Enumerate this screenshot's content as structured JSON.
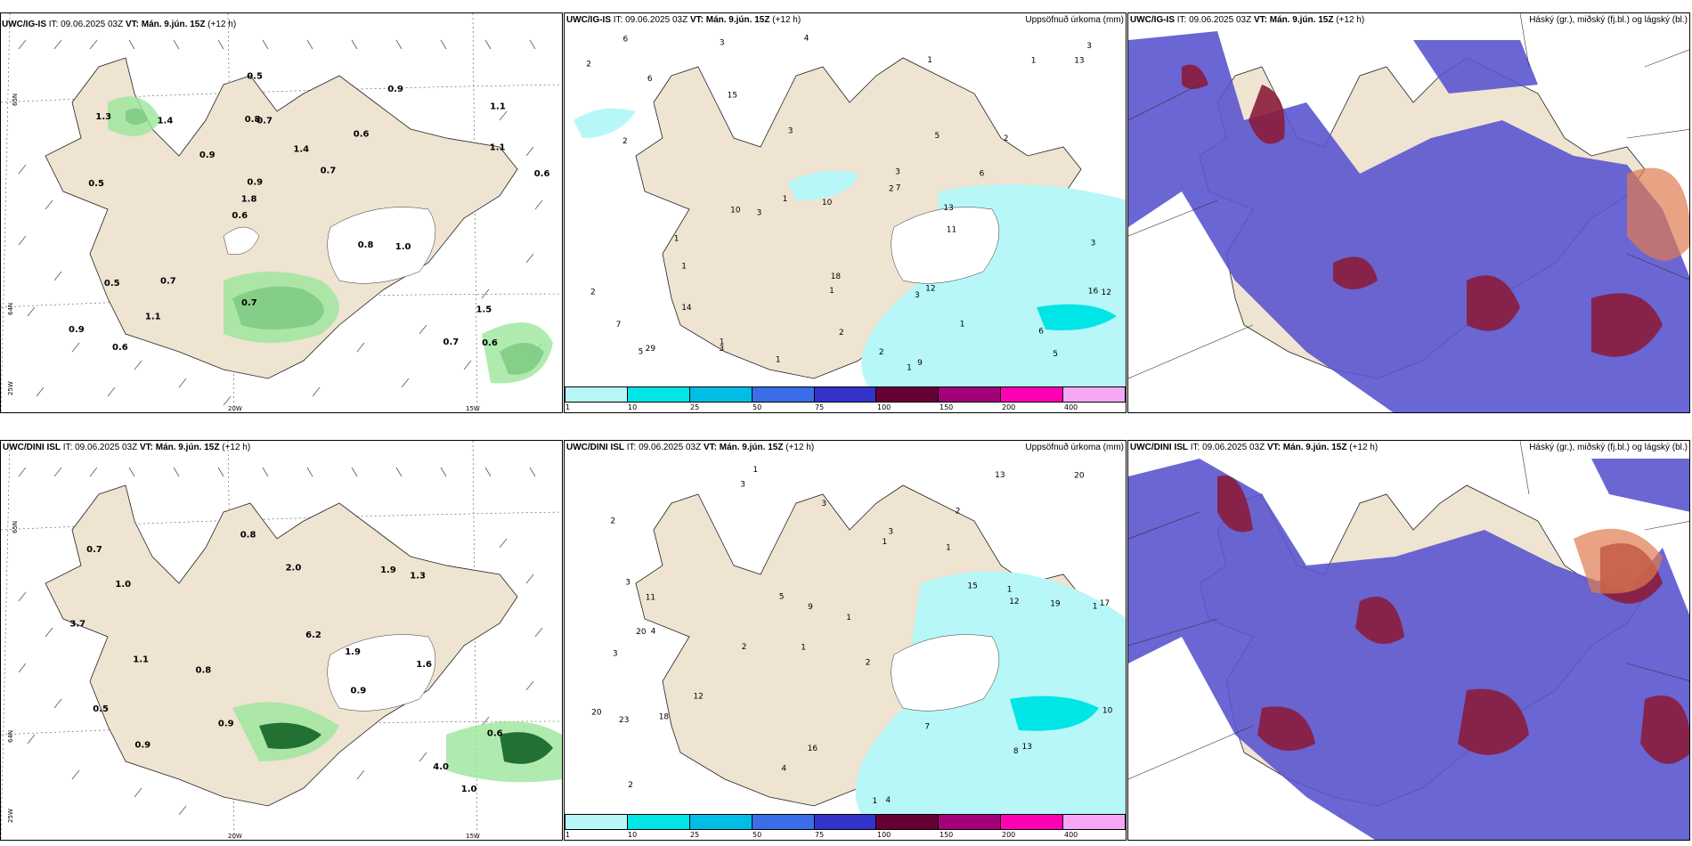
{
  "rows": [
    {
      "model": "UWC/IG-IS",
      "it_label": "IT:",
      "it": "09.06.2025 03Z",
      "vt_label": "VT:",
      "vt": "Mán. 9.jún. 15Z",
      "lead": "(+12 h)",
      "wind_numbers": [
        "0.6",
        "0.5",
        "1.1",
        "0.6",
        "0.6",
        "0.6",
        "0.8",
        "1.4",
        "0.5",
        "0.9",
        "0.9",
        "1.1",
        "0.7",
        "0.7",
        "1.0",
        "1.3",
        "0.5",
        "0.6",
        "0.8",
        "1.1",
        "1.8",
        "0.7",
        "0.9",
        "1.4",
        "0.9",
        "0.7",
        "0.7",
        "1.5"
      ],
      "precip_numbers": [
        "1",
        "1",
        "1",
        "1",
        "3",
        "6",
        "10",
        "5",
        "4",
        "3",
        "1",
        "2",
        "1",
        "1",
        "1",
        "2",
        "2",
        "3",
        "3",
        "2",
        "3",
        "3",
        "3",
        "5",
        "2",
        "1",
        "2",
        "1",
        "6",
        "11",
        "10",
        "9",
        "18",
        "13",
        "14",
        "13",
        "16",
        "7",
        "5",
        "6",
        "7",
        "6",
        "12",
        "29",
        "15",
        "12",
        "3",
        "2"
      ]
    },
    {
      "model": "UWC/DINI ISL",
      "it_label": "IT:",
      "it": "09.06.2025 03Z",
      "vt_label": "VT:",
      "vt": "Mán. 9.jún. 15Z",
      "lead": "(+12 h)",
      "wind_numbers": [
        "1.0",
        "1.1",
        "0.9",
        "0.7",
        "0.6",
        "1.0",
        "0.9",
        "0.8",
        "1.3",
        "2.0",
        "1.9",
        "4.0",
        "0.9",
        "0.8",
        "1.9",
        "0.5",
        "1.6",
        "6.2",
        "3.7"
      ],
      "precip_numbers": [
        "1",
        "2",
        "1",
        "1",
        "2",
        "4",
        "2",
        "1",
        "3",
        "1",
        "1",
        "2",
        "3",
        "2",
        "1",
        "4",
        "16",
        "13",
        "15",
        "12",
        "11",
        "20",
        "17",
        "19",
        "20",
        "3",
        "9",
        "12",
        "13",
        "23",
        "8",
        "3",
        "18",
        "5",
        "7",
        "10",
        "1",
        "4",
        "20",
        "3"
      ]
    }
  ],
  "precip_title": "Uppsöfnuð úrkoma (mm)",
  "cloud_title": "Háský (gr.), miðský (fj.bl.) og lágský (bl.)",
  "axis_labels": {
    "lat1": "65N",
    "lat2": "64N",
    "lat3": "25W",
    "lon1": "20W",
    "lon2": "15W"
  },
  "colorbar": {
    "labels": [
      "1",
      "10",
      "25",
      "50",
      "75",
      "100",
      "150",
      "200",
      "400"
    ],
    "colors": [
      "#b8f7f7",
      "#00e5e5",
      "#00bde6",
      "#3a6de8",
      "#3333cc",
      "#660033",
      "#a3007a",
      "#ff00b3",
      "#f5a6f5"
    ]
  },
  "colors": {
    "land": "#efe3d2",
    "glacier": "#ffffff",
    "green_dark": "#0b5a1f",
    "green_light": "#9be69b",
    "precip_light": "#b8f7f7",
    "cloud_blue": "#5a55cf",
    "cloud_red": "#8b1c3c",
    "cloud_orange": "#e07a50"
  }
}
